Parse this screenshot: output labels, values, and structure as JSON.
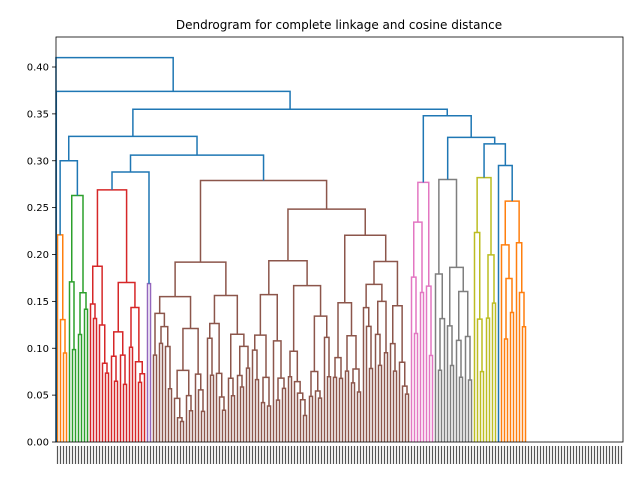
{
  "chart_data": {
    "type": "dendrogram",
    "title": "Dendrogram for complete linkage and cosine distance",
    "xlabel": "",
    "ylabel": "",
    "ylim": [
      0,
      0.432
    ],
    "yticks": [
      0.0,
      0.05,
      0.1,
      0.15,
      0.2,
      0.25,
      0.3,
      0.35,
      0.4
    ],
    "ytick_labels": [
      "0.00",
      "0.05",
      "0.10",
      "0.15",
      "0.20",
      "0.25",
      "0.30",
      "0.35",
      "0.40"
    ],
    "leaf_count": 189,
    "above_threshold_color": "#1f77b4",
    "top_merges": [
      {
        "height": 0.41,
        "description": "root"
      },
      {
        "height": 0.374
      },
      {
        "height": 0.355
      },
      {
        "height": 0.348
      },
      {
        "height": 0.326
      },
      {
        "height": 0.325
      },
      {
        "height": 0.318
      },
      {
        "height": 0.307
      },
      {
        "height": 0.306
      },
      {
        "height": 0.3
      },
      {
        "height": 0.295
      },
      {
        "height": 0.288
      }
    ],
    "clusters": [
      {
        "color": "#ff7f0e",
        "leaves": 4,
        "top_height": 0.221
      },
      {
        "color": "#2ca02c",
        "leaves": 7,
        "top_height": 0.263
      },
      {
        "color": "#d62728",
        "leaves": 19,
        "top_height": 0.269
      },
      {
        "color": "#9467bd",
        "leaves": 2,
        "top_height": 0.169
      },
      {
        "color": "#8c564b",
        "leaves": 86,
        "top_height": 0.279
      },
      {
        "color": "#e377c2",
        "leaves": 8,
        "top_height": 0.277
      },
      {
        "color": "#7f7f7f",
        "leaves": 13,
        "top_height": 0.28
      },
      {
        "color": "#bcbd22",
        "leaves": 8,
        "top_height": 0.282
      },
      {
        "color": "#17becf",
        "leaves": 1,
        "top_height": 0.0
      },
      {
        "color": "#ff7f0e",
        "leaves": 9,
        "top_height": 0.257
      }
    ]
  }
}
